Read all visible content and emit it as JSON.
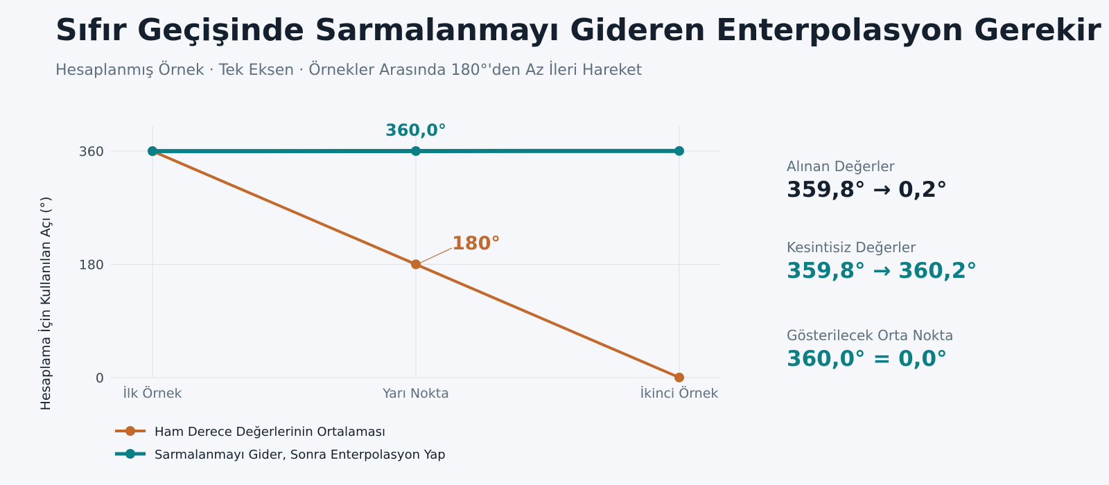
{
  "title": "Sıfır Geçişinde Sarmalanmayı Gideren Enterpolasyon Gerekir",
  "subtitle": "Hesaplanmış Örnek · Tek Eksen · Örnekler Arasında 180°'den Az İleri Hareket",
  "colors": {
    "raw": "#c2692b",
    "unwrapped": "#0b7f86",
    "grid": "#dde2e8",
    "text_dark": "#15202e",
    "text_muted": "#5e6f7f",
    "background": "#f5f7fa"
  },
  "chart_data": {
    "type": "line",
    "categories": [
      "İlk Örnek",
      "Yarı Nokta",
      "İkinci Örnek"
    ],
    "ylabel": "Hesaplama İçin Kullanılan Açı (°)",
    "xlabel": "",
    "ylim": [
      0,
      400
    ],
    "yticks": [
      0,
      180,
      360
    ],
    "grid": true,
    "legend_position": "bottom-left",
    "series": [
      {
        "name": "Ham Derece Değerlerinin Ortalaması",
        "values": [
          359.8,
          180,
          0.2
        ],
        "color": "#c2692b",
        "annotation": {
          "index": 1,
          "text": "180°"
        }
      },
      {
        "name": "Sarmalanmayı Gider, Sonra Enterpolasyon Yap",
        "values": [
          359.8,
          360.0,
          360.2
        ],
        "color": "#0b7f86",
        "annotation": {
          "index": 1,
          "text": "360,0°"
        }
      }
    ]
  },
  "side_panel": [
    {
      "label": "Alınan Değerler",
      "value": "359,8° → 0,2°",
      "color": "#15202e"
    },
    {
      "label": "Kesintisiz Değerler",
      "value": "359,8° → 360,2°",
      "color": "#0b7f86"
    },
    {
      "label": "Gösterilecek Orta Nokta",
      "value": "360,0° = 0,0°",
      "color": "#0b7f86"
    }
  ]
}
